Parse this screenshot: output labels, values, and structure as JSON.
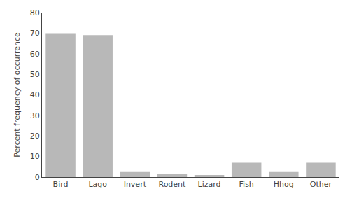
{
  "chart_data": {
    "type": "bar",
    "categories": [
      "Bird",
      "Lago",
      "Invert",
      "Rodent",
      "Lizard",
      "Fish",
      "Hhog",
      "Other"
    ],
    "values": [
      70.0,
      69.0,
      2.5,
      1.5,
      1.0,
      7.0,
      2.5,
      7.0
    ],
    "color": "#b8b8b8",
    "ylabel": "Percent frequency of occurrence",
    "ylim": [
      0,
      80
    ],
    "yticks": [
      0,
      10,
      20,
      30,
      40,
      50,
      60,
      70,
      80
    ],
    "grid": false
  }
}
